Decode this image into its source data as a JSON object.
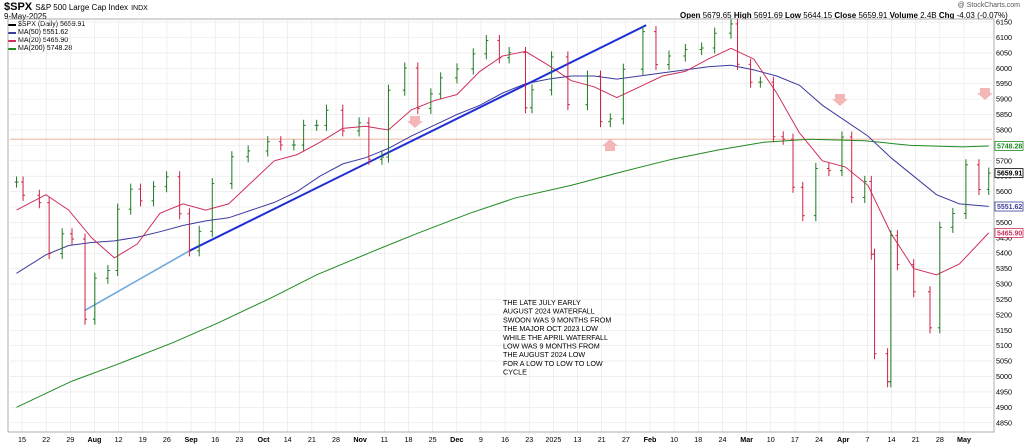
{
  "header": {
    "symbol": "$SPX",
    "name": "S&P 500 Large Cap Index",
    "exchange": "INDX",
    "date": "9-May-2025",
    "watermark": "@ StockCharts.com",
    "open_label": "Open",
    "open": "5679.65",
    "high_label": "High",
    "high": "5691.69",
    "low_label": "Low",
    "low": "5644.15",
    "close_label": "Close",
    "close": "5659.91",
    "volume_label": "Volume",
    "volume": "2.4B",
    "chg_label": "Chg",
    "chg": "-4.03 (-0.07%)"
  },
  "legend": [
    {
      "text": "$SPX (Daily) 5659.91",
      "color": "#000000"
    },
    {
      "text": "MA(50) 5551.62",
      "color": "#3b3b9e"
    },
    {
      "text": "MA(20) 5465.90",
      "color": "#d0305a"
    },
    {
      "text": "MA(200) 5748.28",
      "color": "#1f8a1f"
    }
  ],
  "annotation_lines": [
    "THE LATE JULY EARLY",
    "AUGUST 2024 WATERFALL",
    "SWOON WAS 9 MONTHS FROM",
    "THE MAJOR OCT 2023 LOW",
    "WHILE THE APRIL WATERFALL",
    "LOW WAS 9 MONTHS FROM",
    "THE AUGUST 2024 LOW",
    "FOR A LOW TO LOW TO LOW",
    "CYCLE"
  ],
  "price_tags": [
    {
      "text": "5748.28",
      "value": 5748.28,
      "color": "#1f8a1f"
    },
    {
      "text": "5659.91",
      "value": 5659.91,
      "color": "#000000"
    },
    {
      "text": "5551.62",
      "value": 5551.62,
      "color": "#3b3b9e"
    },
    {
      "text": "5465.90",
      "value": 5465.9,
      "color": "#d0305a"
    }
  ],
  "colors": {
    "ma50": "#3b3b9e",
    "ma20": "#d0305a",
    "ma200": "#1f8a1f",
    "trendline": "#1f2fd6",
    "trendline_ext": "#6fa8dc",
    "horizontal": "#f2b8a8",
    "arrows": "#f4b6b6",
    "up_bar": "#1f7a1f",
    "down_bar": "#cc2244",
    "grid": "#e6e6e6"
  },
  "chart_data": {
    "type": "line",
    "title": "$SPX S&P 500 Large Cap Index INDX",
    "ylim": [
      4820,
      6160
    ],
    "y_ticks": [
      4850,
      4900,
      4950,
      5000,
      5050,
      5100,
      5150,
      5200,
      5250,
      5300,
      5350,
      5400,
      5450,
      5500,
      5550,
      5600,
      5650,
      5700,
      5750,
      5800,
      5850,
      5900,
      5950,
      6000,
      6050,
      6100,
      6150
    ],
    "x_tick_labels": [
      "15",
      "22",
      "29",
      "Aug",
      "12",
      "19",
      "26",
      "Sep",
      "16",
      "23",
      "Oct",
      "14",
      "21",
      "28",
      "Nov",
      "11",
      "18",
      "25",
      "Dec",
      "9",
      "16",
      "23",
      "2025",
      "13",
      "21",
      "27",
      "Feb",
      "10",
      "18",
      "24",
      "Mar",
      "10",
      "17",
      "24",
      "Apr",
      "7",
      "14",
      "21",
      "28",
      "May"
    ],
    "horizontal_level": 5770,
    "price_close": [
      [
        "Jul 15",
        5631
      ],
      [
        "Jul 17",
        5588
      ],
      [
        "Jul 22",
        5564
      ],
      [
        "Jul 25",
        5399
      ],
      [
        "Jul 29",
        5463
      ],
      [
        "Aug 1",
        5446
      ],
      [
        "Aug 5",
        5186
      ],
      [
        "Aug 8",
        5319
      ],
      [
        "Aug 12",
        5344
      ],
      [
        "Aug 15",
        5543
      ],
      [
        "Aug 19",
        5608
      ],
      [
        "Aug 22",
        5570
      ],
      [
        "Aug 26",
        5616
      ],
      [
        "Aug 30",
        5648
      ],
      [
        "Sep 3",
        5528
      ],
      [
        "Sep 6",
        5408
      ],
      [
        "Sep 9",
        5471
      ],
      [
        "Sep 13",
        5626
      ],
      [
        "Sep 19",
        5713
      ],
      [
        "Sep 24",
        5732
      ],
      [
        "Sep 30",
        5762
      ],
      [
        "Oct 4",
        5751
      ],
      [
        "Oct 8",
        5751
      ],
      [
        "Oct 11",
        5815
      ],
      [
        "Oct 15",
        5815
      ],
      [
        "Oct 18",
        5864
      ],
      [
        "Oct 23",
        5797
      ],
      [
        "Oct 28",
        5823
      ],
      [
        "Oct 31",
        5705
      ],
      [
        "Nov 4",
        5712
      ],
      [
        "Nov 6",
        5929
      ],
      [
        "Nov 11",
        6001
      ],
      [
        "Nov 15",
        5870
      ],
      [
        "Nov 19",
        5917
      ],
      [
        "Nov 22",
        5969
      ],
      [
        "Nov 27",
        5998
      ],
      [
        "Dec 2",
        6047
      ],
      [
        "Dec 6",
        6090
      ],
      [
        "Dec 10",
        6034
      ],
      [
        "Dec 13",
        6051
      ],
      [
        "Dec 18",
        5872
      ],
      [
        "Dec 20",
        5930
      ],
      [
        "Dec 26",
        6037
      ],
      [
        "Dec 31",
        5882
      ],
      [
        "Jan 6",
        5975
      ],
      [
        "Jan 10",
        5827
      ],
      [
        "Jan 13",
        5836
      ],
      [
        "Jan 17",
        5997
      ],
      [
        "Jan 23",
        6119
      ],
      [
        "Jan 27",
        6012
      ],
      [
        "Jan 31",
        6040
      ],
      [
        "Feb 5",
        6061
      ],
      [
        "Feb 10",
        6066
      ],
      [
        "Feb 14",
        6114
      ],
      [
        "Feb 19",
        6144
      ],
      [
        "Feb 21",
        6013
      ],
      [
        "Feb 25",
        5955
      ],
      [
        "Feb 28",
        5955
      ],
      [
        "Mar 4",
        5778
      ],
      [
        "Mar 7",
        5770
      ],
      [
        "Mar 10",
        5614
      ],
      [
        "Mar 13",
        5522
      ],
      [
        "Mar 17",
        5675
      ],
      [
        "Mar 21",
        5668
      ],
      [
        "Mar 25",
        5777
      ],
      [
        "Mar 28",
        5581
      ],
      [
        "Apr 1",
        5633
      ],
      [
        "Apr 3",
        5397
      ],
      [
        "Apr 4",
        5074
      ],
      [
        "Apr 8",
        4983
      ],
      [
        "Apr 9",
        5457
      ],
      [
        "Apr 11",
        5363
      ],
      [
        "Apr 16",
        5275
      ],
      [
        "Apr 21",
        5158
      ],
      [
        "Apr 24",
        5484
      ],
      [
        "Apr 28",
        5529
      ],
      [
        "May 2",
        5687
      ],
      [
        "May 6",
        5607
      ],
      [
        "May 9",
        5660
      ]
    ],
    "ma20": [
      [
        "Jul 15",
        5540
      ],
      [
        "Jul 24",
        5590
      ],
      [
        "Jul 31",
        5540
      ],
      [
        "Aug 7",
        5450
      ],
      [
        "Aug 14",
        5385
      ],
      [
        "Aug 21",
        5430
      ],
      [
        "Aug 28",
        5530
      ],
      [
        "Sep 4",
        5560
      ],
      [
        "Sep 11",
        5540
      ],
      [
        "Sep 18",
        5560
      ],
      [
        "Sep 25",
        5630
      ],
      [
        "Oct 2",
        5700
      ],
      [
        "Oct 9",
        5720
      ],
      [
        "Oct 16",
        5760
      ],
      [
        "Oct 23",
        5805
      ],
      [
        "Oct 30",
        5812
      ],
      [
        "Nov 6",
        5800
      ],
      [
        "Nov 13",
        5865
      ],
      [
        "Nov 20",
        5895
      ],
      [
        "Nov 27",
        5915
      ],
      [
        "Dec 4",
        5990
      ],
      [
        "Dec 11",
        6040
      ],
      [
        "Dec 18",
        6055
      ],
      [
        "Dec 25",
        6010
      ],
      [
        "Jan 1",
        5960
      ],
      [
        "Jan 8",
        5940
      ],
      [
        "Jan 15",
        5905
      ],
      [
        "Jan 22",
        5940
      ],
      [
        "Jan 29",
        5975
      ],
      [
        "Feb 5",
        5990
      ],
      [
        "Feb 12",
        6030
      ],
      [
        "Feb 19",
        6065
      ],
      [
        "Feb 26",
        6030
      ],
      [
        "Mar 5",
        5920
      ],
      [
        "Mar 12",
        5790
      ],
      [
        "Mar 19",
        5700
      ],
      [
        "Mar 26",
        5680
      ],
      [
        "Apr 2",
        5620
      ],
      [
        "Apr 9",
        5465
      ],
      [
        "Apr 16",
        5350
      ],
      [
        "Apr 23",
        5330
      ],
      [
        "Apr 30",
        5365
      ],
      [
        "May 9",
        5466
      ]
    ],
    "ma50": [
      [
        "Jul 15",
        5335
      ],
      [
        "Jul 24",
        5395
      ],
      [
        "Jul 31",
        5425
      ],
      [
        "Aug 7",
        5435
      ],
      [
        "Aug 14",
        5440
      ],
      [
        "Aug 21",
        5452
      ],
      [
        "Aug 28",
        5470
      ],
      [
        "Sep 4",
        5490
      ],
      [
        "Sep 11",
        5505
      ],
      [
        "Sep 18",
        5515
      ],
      [
        "Sep 25",
        5540
      ],
      [
        "Oct 2",
        5565
      ],
      [
        "Oct 9",
        5600
      ],
      [
        "Oct 16",
        5650
      ],
      [
        "Oct 23",
        5690
      ],
      [
        "Oct 30",
        5710
      ],
      [
        "Nov 6",
        5740
      ],
      [
        "Nov 13",
        5780
      ],
      [
        "Nov 20",
        5815
      ],
      [
        "Nov 27",
        5850
      ],
      [
        "Dec 4",
        5880
      ],
      [
        "Dec 11",
        5920
      ],
      [
        "Dec 18",
        5950
      ],
      [
        "Dec 25",
        5965
      ],
      [
        "Jan 1",
        5975
      ],
      [
        "Jan 8",
        5975
      ],
      [
        "Jan 15",
        5965
      ],
      [
        "Jan 22",
        5975
      ],
      [
        "Jan 29",
        5985
      ],
      [
        "Feb 5",
        5995
      ],
      [
        "Feb 12",
        6005
      ],
      [
        "Feb 19",
        6010
      ],
      [
        "Feb 26",
        5995
      ],
      [
        "Mar 5",
        5975
      ],
      [
        "Mar 12",
        5945
      ],
      [
        "Mar 19",
        5880
      ],
      [
        "Mar 26",
        5830
      ],
      [
        "Apr 2",
        5780
      ],
      [
        "Apr 9",
        5710
      ],
      [
        "Apr 16",
        5650
      ],
      [
        "Apr 23",
        5590
      ],
      [
        "Apr 30",
        5560
      ],
      [
        "May 9",
        5552
      ]
    ],
    "ma200": [
      [
        "Jul 15",
        4900
      ],
      [
        "Aug 1",
        4985
      ],
      [
        "Aug 15",
        5040
      ],
      [
        "Sep 1",
        5110
      ],
      [
        "Sep 15",
        5175
      ],
      [
        "Oct 1",
        5255
      ],
      [
        "Oct 15",
        5330
      ],
      [
        "Nov 1",
        5405
      ],
      [
        "Nov 15",
        5465
      ],
      [
        "Dec 1",
        5530
      ],
      [
        "Dec 15",
        5580
      ],
      [
        "Jan 1",
        5620
      ],
      [
        "Jan 15",
        5660
      ],
      [
        "Feb 1",
        5705
      ],
      [
        "Feb 15",
        5735
      ],
      [
        "Mar 1",
        5760
      ],
      [
        "Mar 15",
        5770
      ],
      [
        "Apr 1",
        5765
      ],
      [
        "Apr 15",
        5750
      ],
      [
        "May 1",
        5745
      ],
      [
        "May 9",
        5748
      ]
    ],
    "trendline": [
      [
        "Sep 6",
        5408
      ],
      [
        "Jan 24",
        6140
      ]
    ],
    "trendline_extension": [
      [
        "Aug 5",
        5215
      ],
      [
        "Sep 6",
        5408
      ]
    ]
  }
}
